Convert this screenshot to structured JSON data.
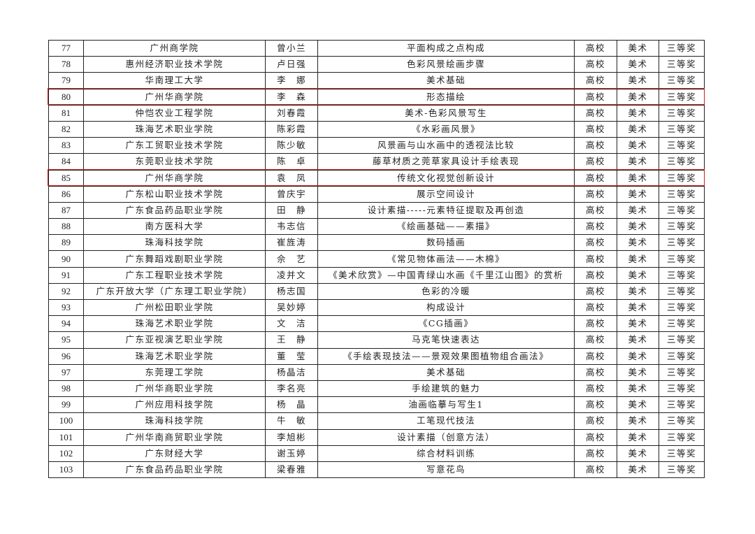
{
  "highlight_color": "#d02020",
  "highlighted_rows": [
    "80",
    "85"
  ],
  "rows": [
    [
      "77",
      "广州商学院",
      "曾小兰",
      "平面构成之点构成",
      "高校",
      "美术",
      "三等奖"
    ],
    [
      "78",
      "惠州经济职业技术学院",
      "卢日强",
      "色彩风景绘画步骤",
      "高校",
      "美术",
      "三等奖"
    ],
    [
      "79",
      "华南理工大学",
      "李　娜",
      "美术基础",
      "高校",
      "美术",
      "三等奖"
    ],
    [
      "80",
      "广州华商学院",
      "李　森",
      "形态描绘",
      "高校",
      "美术",
      "三等奖"
    ],
    [
      "81",
      "仲恺农业工程学院",
      "刘春霞",
      "美术-色彩风景写生",
      "高校",
      "美术",
      "三等奖"
    ],
    [
      "82",
      "珠海艺术职业学院",
      "陈彩霞",
      "《水彩画风景》",
      "高校",
      "美术",
      "三等奖"
    ],
    [
      "83",
      "广东工贸职业技术学院",
      "陈少敏",
      "风景画与山水画中的透视法比较",
      "高校",
      "美术",
      "三等奖"
    ],
    [
      "84",
      "东莞职业技术学院",
      "陈　卓",
      "藤草材质之莞草家具设计手绘表现",
      "高校",
      "美术",
      "三等奖"
    ],
    [
      "85",
      "广州华商学院",
      "袁　凤",
      "传统文化视觉创新设计",
      "高校",
      "美术",
      "三等奖"
    ],
    [
      "86",
      "广东松山职业技术学院",
      "曾庆宇",
      "展示空间设计",
      "高校",
      "美术",
      "三等奖"
    ],
    [
      "87",
      "广东食品药品职业学院",
      "田　静",
      "设计素描-----元素特征提取及再创造",
      "高校",
      "美术",
      "三等奖"
    ],
    [
      "88",
      "南方医科大学",
      "韦志信",
      "《绘画基础——素描》",
      "高校",
      "美术",
      "三等奖"
    ],
    [
      "89",
      "珠海科技学院",
      "崔旌涛",
      "数码插画",
      "高校",
      "美术",
      "三等奖"
    ],
    [
      "90",
      "广东舞蹈戏剧职业学院",
      "佘　艺",
      "《常见物体画法——木棉》",
      "高校",
      "美术",
      "三等奖"
    ],
    [
      "91",
      "广东工程职业技术学院",
      "凌并文",
      "《美术欣赏》—中国青绿山水画《千里江山图》的赏析",
      "高校",
      "美术",
      "三等奖"
    ],
    [
      "92",
      "广东开放大学（广东理工职业学院）",
      "杨志国",
      "色彩的冷暖",
      "高校",
      "美术",
      "三等奖"
    ],
    [
      "93",
      "广州松田职业学院",
      "吴妙婷",
      "构成设计",
      "高校",
      "美术",
      "三等奖"
    ],
    [
      "94",
      "珠海艺术职业学院",
      "文　洁",
      "《CG插画》",
      "高校",
      "美术",
      "三等奖"
    ],
    [
      "95",
      "广东亚视演艺职业学院",
      "王　静",
      "马克笔快速表达",
      "高校",
      "美术",
      "三等奖"
    ],
    [
      "96",
      "珠海艺术职业学院",
      "董　莹",
      "《手绘表现技法——景观效果图植物组合画法》",
      "高校",
      "美术",
      "三等奖"
    ],
    [
      "97",
      "东莞理工学院",
      "杨晶洁",
      "美术基础",
      "高校",
      "美术",
      "三等奖"
    ],
    [
      "98",
      "广州华商职业学院",
      "李名亮",
      "手绘建筑的魅力",
      "高校",
      "美术",
      "三等奖"
    ],
    [
      "99",
      "广州应用科技学院",
      "杨　晶",
      "油画临摹与写生1",
      "高校",
      "美术",
      "三等奖"
    ],
    [
      "100",
      "珠海科技学院",
      "牛　敏",
      "工笔现代技法",
      "高校",
      "美术",
      "三等奖"
    ],
    [
      "101",
      "广州华南商贸职业学院",
      "李旭彬",
      "设计素描（创意方法）",
      "高校",
      "美术",
      "三等奖"
    ],
    [
      "102",
      "广东财经大学",
      "谢玉婷",
      "综合材料训练",
      "高校",
      "美术",
      "三等奖"
    ],
    [
      "103",
      "广东食品药品职业学院",
      "梁春雅",
      "写意花鸟",
      "高校",
      "美术",
      "三等奖"
    ]
  ]
}
